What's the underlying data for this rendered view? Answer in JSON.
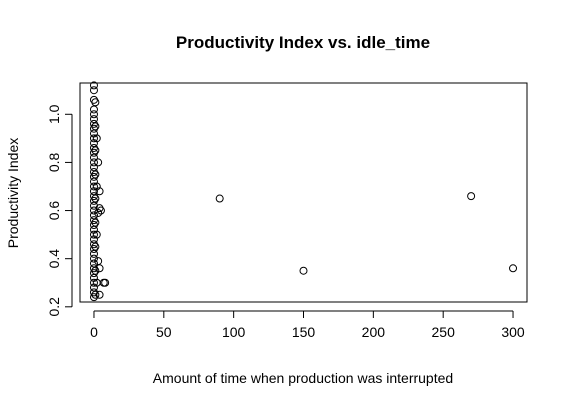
{
  "chart_data": {
    "type": "scatter",
    "title": "Productivity Index vs. idle_time",
    "xlabel": "Amount of time when production was interrupted",
    "ylabel": "Productivity Index",
    "xlim": [
      -10,
      310
    ],
    "ylim": [
      0.22,
      1.13
    ],
    "x_ticks": [
      0,
      50,
      100,
      150,
      200,
      250,
      300
    ],
    "x_tick_labels": [
      "0",
      "50",
      "100",
      "150",
      "200",
      "250",
      "300"
    ],
    "y_ticks": [
      0.2,
      0.4,
      0.6,
      0.8,
      1.0
    ],
    "y_tick_labels": [
      "0.2",
      "0.4",
      "0.6",
      "0.8",
      "1.0"
    ],
    "grid": false,
    "marker": "open-circle",
    "points": [
      [
        0,
        0.24
      ],
      [
        0,
        0.26
      ],
      [
        0,
        0.28
      ],
      [
        0,
        0.3
      ],
      [
        0,
        0.32
      ],
      [
        0,
        0.34
      ],
      [
        0,
        0.36
      ],
      [
        0,
        0.38
      ],
      [
        0,
        0.4
      ],
      [
        0,
        0.42
      ],
      [
        0,
        0.44
      ],
      [
        0,
        0.46
      ],
      [
        0,
        0.48
      ],
      [
        0,
        0.5
      ],
      [
        0,
        0.52
      ],
      [
        0,
        0.54
      ],
      [
        0,
        0.56
      ],
      [
        0,
        0.58
      ],
      [
        0,
        0.6
      ],
      [
        0,
        0.62
      ],
      [
        0,
        0.64
      ],
      [
        0,
        0.66
      ],
      [
        0,
        0.68
      ],
      [
        0,
        0.7
      ],
      [
        0,
        0.72
      ],
      [
        0,
        0.74
      ],
      [
        0,
        0.76
      ],
      [
        0,
        0.78
      ],
      [
        0,
        0.8
      ],
      [
        0,
        0.82
      ],
      [
        0,
        0.84
      ],
      [
        0,
        0.86
      ],
      [
        0,
        0.88
      ],
      [
        0,
        0.9
      ],
      [
        0,
        0.92
      ],
      [
        0,
        0.94
      ],
      [
        0,
        0.96
      ],
      [
        0,
        0.98
      ],
      [
        0,
        1.0
      ],
      [
        0,
        1.02
      ],
      [
        0,
        1.06
      ],
      [
        0,
        1.1
      ],
      [
        0,
        1.12
      ],
      [
        1,
        0.25
      ],
      [
        1,
        0.35
      ],
      [
        1,
        0.45
      ],
      [
        1,
        0.55
      ],
      [
        1,
        0.65
      ],
      [
        1,
        0.75
      ],
      [
        1,
        0.85
      ],
      [
        1,
        0.95
      ],
      [
        1,
        1.05
      ],
      [
        2,
        0.3
      ],
      [
        2,
        0.5
      ],
      [
        2,
        0.7
      ],
      [
        2,
        0.9
      ],
      [
        3,
        0.39
      ],
      [
        3,
        0.59
      ],
      [
        3,
        0.8
      ],
      [
        4,
        0.36
      ],
      [
        4,
        0.25
      ],
      [
        4,
        0.61
      ],
      [
        4,
        0.68
      ],
      [
        5,
        0.6
      ],
      [
        7,
        0.3
      ],
      [
        8,
        0.3
      ],
      [
        90,
        0.65
      ],
      [
        150,
        0.35
      ],
      [
        270,
        0.66
      ],
      [
        300,
        0.36
      ]
    ]
  }
}
